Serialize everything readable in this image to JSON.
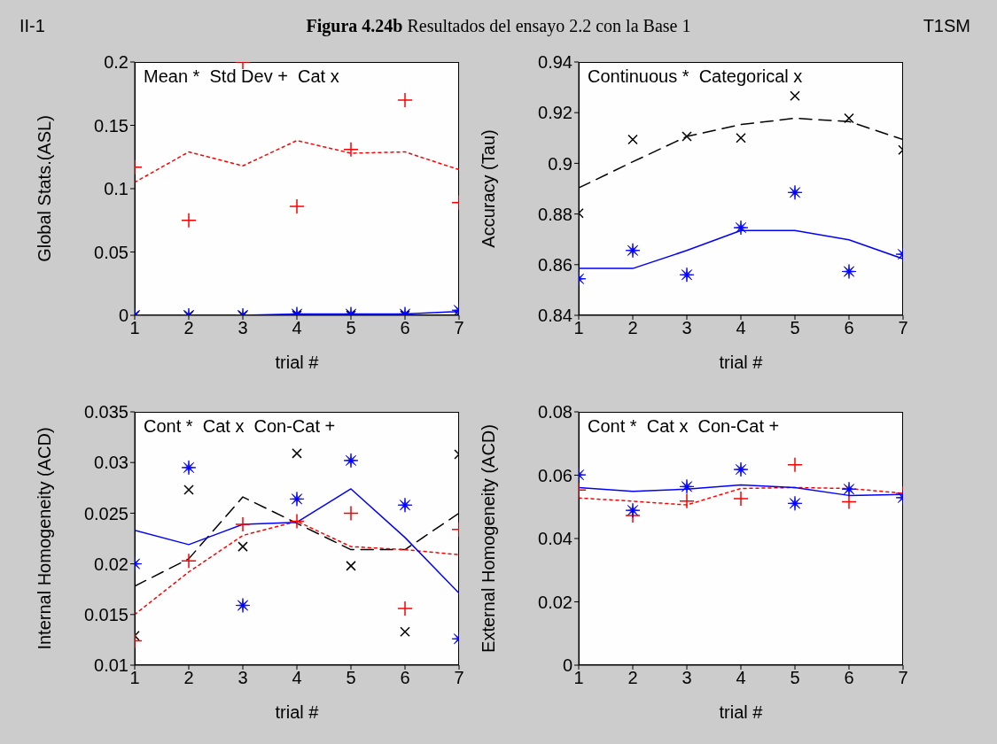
{
  "chart_data": [
    {
      "type": "line",
      "title": "Figura 4.24b Resultados del ensayo 2.2 con la Base 1",
      "xlabel": "trial #",
      "ylabel": "Global Stats.(ASL)",
      "x": [
        1,
        2,
        3,
        4,
        5,
        6,
        7
      ],
      "xlim": [
        1,
        7
      ],
      "xticks": [
        1,
        2,
        3,
        4,
        5,
        6,
        7
      ],
      "ylim": [
        0,
        0.2
      ],
      "yticks": [
        0,
        0.05,
        0.1,
        0.15,
        0.2
      ],
      "annotations": [
        "II-1",
        "T1SM",
        "Mean *  Std Dev +  Cat x"
      ],
      "series": [
        {
          "type": "line",
          "color": "#000000",
          "line_style": "dashed",
          "values": [
            0,
            0,
            0,
            0,
            0,
            0,
            0
          ]
        },
        {
          "type": "line",
          "color": "#ff0000",
          "line_style": "dotted",
          "values": [
            0.105,
            0.129,
            0.118,
            0.138,
            0.128,
            0.129,
            0.115
          ]
        },
        {
          "type": "line",
          "color": "#0000ff",
          "line_style": "solid",
          "values": [
            0,
            0,
            0,
            0.001,
            0.001,
            0.001,
            0.003
          ]
        },
        {
          "type": "scatter",
          "color": "#000000",
          "marker": "x",
          "values": [
            0,
            0,
            0,
            0,
            0,
            0,
            0
          ]
        },
        {
          "type": "scatter",
          "color": "#ff0000",
          "marker": "cross",
          "values": [
            0.117,
            0.075,
            0.2,
            0.086,
            0.131,
            0.17,
            0.089
          ]
        },
        {
          "type": "scatter",
          "color": "#0000ff",
          "marker": "star",
          "values": [
            0,
            0,
            0,
            0.001,
            0.001,
            0.001,
            0.004
          ]
        }
      ]
    },
    {
      "type": "line",
      "xlabel": "trial #",
      "ylabel": "Accuracy (Tau)",
      "x": [
        1,
        2,
        3,
        4,
        5,
        6,
        7
      ],
      "xlim": [
        1,
        7
      ],
      "xticks": [
        1,
        2,
        3,
        4,
        5,
        6,
        7
      ],
      "ylim": [
        0.84,
        0.94
      ],
      "yticks": [
        0.84,
        0.86,
        0.88,
        0.9,
        0.92,
        0.94
      ],
      "annotations": [
        "Continuous *  Categorical x"
      ],
      "series": [
        {
          "type": "line",
          "color": "#000000",
          "line_style": "dashed",
          "values": [
            0.8903,
            0.9006,
            0.9106,
            0.9153,
            0.9178,
            0.9165,
            0.9094
          ]
        },
        {
          "type": "line",
          "color": "#0000ff",
          "line_style": "solid",
          "values": [
            0.8585,
            0.8585,
            0.8656,
            0.8735,
            0.8735,
            0.8698,
            0.8623
          ]
        },
        {
          "type": "scatter",
          "color": "#000000",
          "marker": "x",
          "values": [
            0.8803,
            0.9094,
            0.9106,
            0.91,
            0.9266,
            0.9178,
            0.9053
          ]
        },
        {
          "type": "scatter",
          "color": "#0000ff",
          "marker": "star",
          "values": [
            0.8544,
            0.8656,
            0.856,
            0.8746,
            0.8885,
            0.8573,
            0.8641
          ]
        }
      ]
    },
    {
      "type": "line",
      "xlabel": "trial #",
      "ylabel": "Internal Homogeneity (ACD)",
      "x": [
        1,
        2,
        3,
        4,
        5,
        6,
        7
      ],
      "xlim": [
        1,
        7
      ],
      "xticks": [
        1,
        2,
        3,
        4,
        5,
        6,
        7
      ],
      "ylim": [
        0.01,
        0.035
      ],
      "yticks": [
        0.01,
        0.015,
        0.02,
        0.025,
        0.03,
        0.035
      ],
      "annotations": [
        "Cont *  Cat x  Con-Cat +"
      ],
      "series": [
        {
          "type": "line",
          "color": "#000000",
          "line_style": "dashed",
          "values": [
            0.0178,
            0.0205,
            0.0266,
            0.024,
            0.0214,
            0.0214,
            0.025
          ]
        },
        {
          "type": "line",
          "color": "#ff0000",
          "line_style": "dotted",
          "values": [
            0.015,
            0.0192,
            0.0228,
            0.0242,
            0.0217,
            0.0214,
            0.0209
          ]
        },
        {
          "type": "line",
          "color": "#0000ff",
          "line_style": "solid",
          "values": [
            0.0233,
            0.0219,
            0.0239,
            0.0241,
            0.0274,
            0.0226,
            0.0171
          ]
        },
        {
          "type": "scatter",
          "color": "#000000",
          "marker": "x",
          "values": [
            0.0129,
            0.0273,
            0.0217,
            0.0309,
            0.0198,
            0.0133,
            0.0308
          ]
        },
        {
          "type": "scatter",
          "color": "#ff0000",
          "marker": "cross",
          "values": [
            0.0124,
            0.0203,
            0.0239,
            0.0242,
            0.025,
            0.0156,
            0.0234
          ]
        },
        {
          "type": "scatter",
          "color": "#0000ff",
          "marker": "star",
          "values": [
            0.02,
            0.0295,
            0.0159,
            0.0264,
            0.0302,
            0.0258,
            0.0126
          ]
        }
      ]
    },
    {
      "type": "line",
      "xlabel": "trial #",
      "ylabel": "External Homogeneity (ACD)",
      "x": [
        1,
        2,
        3,
        4,
        5,
        6,
        7
      ],
      "xlim": [
        1,
        7
      ],
      "xticks": [
        1,
        2,
        3,
        4,
        5,
        6,
        7
      ],
      "ylim": [
        0,
        0.08
      ],
      "yticks": [
        0,
        0.02,
        0.04,
        0.06,
        0.08
      ],
      "annotations": [
        "Cont *  Cat x  Con-Cat +"
      ],
      "series": [
        {
          "type": "line",
          "color": "#ff0000",
          "line_style": "dotted",
          "values": [
            0.0528,
            0.0518,
            0.0506,
            0.0558,
            0.0561,
            0.0558,
            0.0543
          ]
        },
        {
          "type": "line",
          "color": "#0000ff",
          "line_style": "solid",
          "values": [
            0.0561,
            0.0549,
            0.0556,
            0.0569,
            0.0561,
            0.0536,
            0.0539
          ]
        },
        {
          "type": "scatter",
          "color": "#ff0000",
          "marker": "cross",
          "values": [
            0.0553,
            0.0473,
            0.0518,
            0.0526,
            0.0633,
            0.0516,
            0.0543
          ]
        },
        {
          "type": "scatter",
          "color": "#0000ff",
          "marker": "star",
          "values": [
            0.0601,
            0.0489,
            0.0564,
            0.0618,
            0.0511,
            0.0556,
            0.0529
          ]
        }
      ]
    }
  ]
}
